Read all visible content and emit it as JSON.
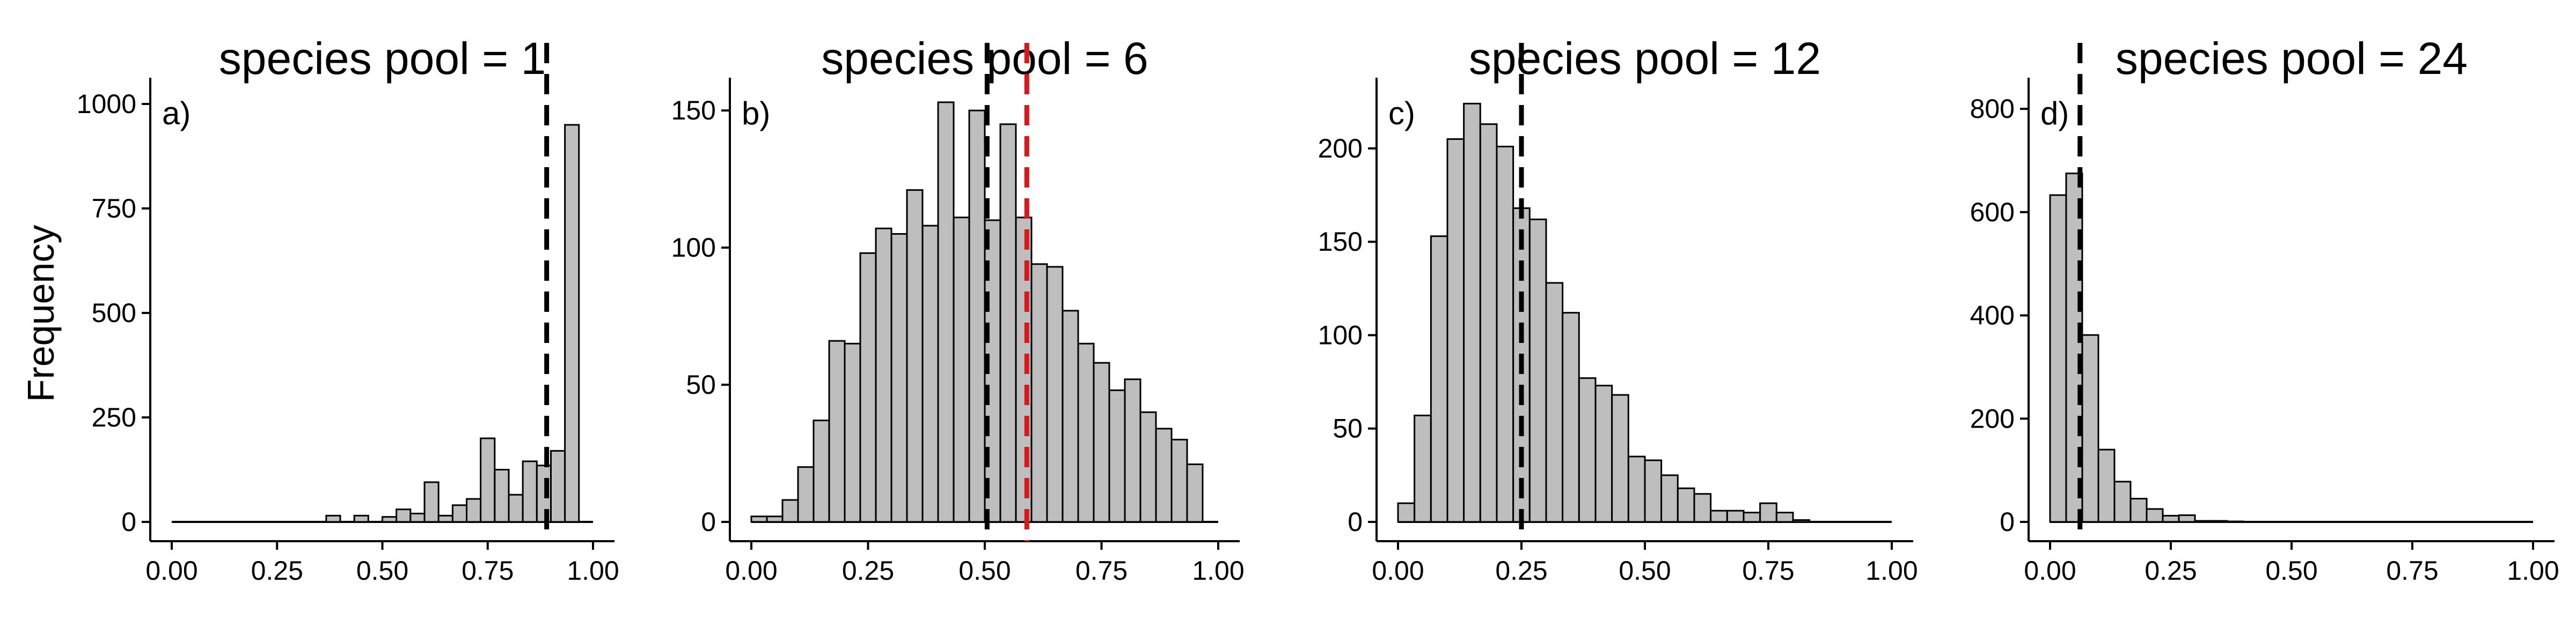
{
  "y_axis_label": "Frequency",
  "colors": {
    "bar_fill": "#bebebe",
    "bar_edge": "#000000",
    "ref_black": "#000000",
    "ref_red": "#d7191c"
  },
  "chart_data": [
    {
      "type": "bar",
      "title": "species pool = 1",
      "panel_label": "a)",
      "xlabel": "",
      "ylabel": "Frequency",
      "xlim": [
        0,
        1
      ],
      "ylim": [
        0,
        1050
      ],
      "x_ticks": [
        0,
        0.25,
        0.5,
        0.75,
        1
      ],
      "x_tick_labels": [
        "0.00",
        "0.25",
        "0.50",
        "0.75",
        "1.00"
      ],
      "y_ticks": [
        0,
        250,
        500,
        750,
        1000
      ],
      "y_tick_labels": [
        "0",
        "250",
        "500",
        "750",
        "1000"
      ],
      "bin_width": 0.0333,
      "bin_starts": [
        0.0,
        0.0333,
        0.0667,
        0.1,
        0.1333,
        0.1667,
        0.2,
        0.2333,
        0.2667,
        0.3,
        0.3333,
        0.3667,
        0.4,
        0.4333,
        0.4667,
        0.5,
        0.5333,
        0.5667,
        0.6,
        0.6333,
        0.6667,
        0.7,
        0.7333,
        0.7667,
        0.8,
        0.8333,
        0.8667,
        0.9,
        0.9333,
        0.9667
      ],
      "counts": [
        0,
        0,
        0,
        0,
        0,
        0,
        0,
        0,
        0,
        0,
        0,
        15,
        0,
        15,
        0,
        12,
        30,
        20,
        95,
        15,
        40,
        55,
        200,
        125,
        65,
        145,
        135,
        170,
        950,
        0
      ],
      "reference_lines": [
        {
          "x": 0.89,
          "color": "#000000"
        }
      ]
    },
    {
      "type": "bar",
      "title": "species pool = 6",
      "panel_label": "b)",
      "xlabel": "",
      "ylabel": "",
      "xlim": [
        0,
        1
      ],
      "ylim": [
        0,
        160
      ],
      "x_ticks": [
        0,
        0.25,
        0.5,
        0.75,
        1
      ],
      "x_tick_labels": [
        "0.00",
        "0.25",
        "0.50",
        "0.75",
        "1.00"
      ],
      "y_ticks": [
        0,
        50,
        100,
        150
      ],
      "y_tick_labels": [
        "0",
        "50",
        "100",
        "150"
      ],
      "bin_width": 0.0333,
      "bin_starts": [
        0.0,
        0.0333,
        0.0667,
        0.1,
        0.1333,
        0.1667,
        0.2,
        0.2333,
        0.2667,
        0.3,
        0.3333,
        0.3667,
        0.4,
        0.4333,
        0.4667,
        0.5,
        0.5333,
        0.5667,
        0.6,
        0.6333,
        0.6667,
        0.7,
        0.7333,
        0.7667,
        0.8,
        0.8333,
        0.8667,
        0.9,
        0.9333
      ],
      "counts": [
        2,
        2,
        8,
        20,
        37,
        66,
        65,
        98,
        107,
        105,
        121,
        108,
        153,
        111,
        150,
        110,
        145,
        111,
        94,
        93,
        77,
        65,
        58,
        48,
        52,
        40,
        34,
        30,
        21
      ],
      "reference_lines": [
        {
          "x": 0.505,
          "color": "#000000"
        },
        {
          "x": 0.59,
          "color": "#d7191c"
        }
      ]
    },
    {
      "type": "bar",
      "title": "species pool = 12",
      "panel_label": "c)",
      "xlabel": "",
      "ylabel": "",
      "xlim": [
        0,
        1
      ],
      "ylim": [
        0,
        235
      ],
      "x_ticks": [
        0,
        0.25,
        0.5,
        0.75,
        1
      ],
      "x_tick_labels": [
        "0.00",
        "0.25",
        "0.50",
        "0.75",
        "1.00"
      ],
      "y_ticks": [
        0,
        50,
        100,
        150,
        200
      ],
      "y_tick_labels": [
        "0",
        "50",
        "100",
        "150",
        "200"
      ],
      "bin_width": 0.0333,
      "bin_starts": [
        0.0,
        0.0333,
        0.0667,
        0.1,
        0.1333,
        0.1667,
        0.2,
        0.2333,
        0.2667,
        0.3,
        0.3333,
        0.3667,
        0.4,
        0.4333,
        0.4667,
        0.5,
        0.5333,
        0.5667,
        0.6,
        0.6333,
        0.6667,
        0.7,
        0.7333,
        0.7667,
        0.8,
        0.8333
      ],
      "counts": [
        10,
        57,
        153,
        205,
        224,
        213,
        201,
        168,
        162,
        128,
        112,
        77,
        73,
        68,
        35,
        33,
        25,
        18,
        15,
        6,
        6,
        5,
        10,
        5,
        1,
        0
      ],
      "reference_lines": [
        {
          "x": 0.25,
          "color": "#000000"
        }
      ]
    },
    {
      "type": "bar",
      "title": "species pool = 24",
      "panel_label": "d)",
      "xlabel": "",
      "ylabel": "",
      "xlim": [
        0,
        1
      ],
      "ylim": [
        0,
        850
      ],
      "x_ticks": [
        0,
        0.25,
        0.5,
        0.75,
        1
      ],
      "x_tick_labels": [
        "0.00",
        "0.25",
        "0.50",
        "0.75",
        "1.00"
      ],
      "y_ticks": [
        0,
        200,
        400,
        600,
        800
      ],
      "y_tick_labels": [
        "0",
        "200",
        "400",
        "600",
        "800"
      ],
      "bin_width": 0.0333,
      "bin_starts": [
        0.0,
        0.0333,
        0.0667,
        0.1,
        0.1333,
        0.1667,
        0.2,
        0.2333,
        0.2667,
        0.3,
        0.3333,
        0.3667
      ],
      "counts": [
        633,
        675,
        362,
        140,
        78,
        45,
        25,
        12,
        13,
        2,
        2,
        1
      ],
      "reference_lines": [
        {
          "x": 0.062,
          "color": "#000000"
        }
      ]
    }
  ]
}
